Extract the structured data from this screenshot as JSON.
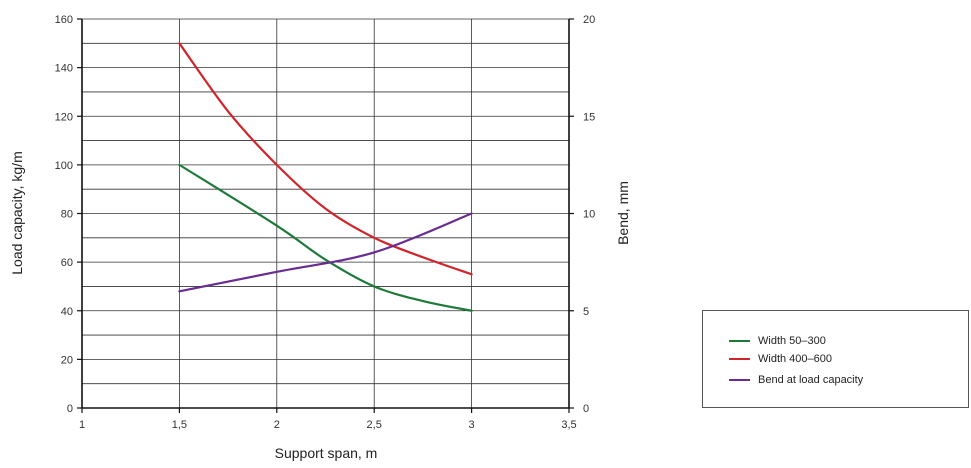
{
  "chart_data": {
    "type": "line",
    "xlabel": "Support span, m",
    "ylabel": "Load capacity, kg/m",
    "y2label": "Bend, mm",
    "x_ticks": [
      "1",
      "1,5",
      "2",
      "2,5",
      "3",
      "3,5"
    ],
    "y_ticks": [
      "0",
      "20",
      "40",
      "60",
      "80",
      "100",
      "120",
      "140",
      "160"
    ],
    "y2_ticks": [
      "0",
      "5",
      "10",
      "15",
      "20"
    ],
    "xlim": [
      1,
      3.5
    ],
    "ylim": [
      0,
      160
    ],
    "y2lim": [
      0,
      20
    ],
    "grid": true,
    "legend_position": "bottom-right",
    "series": [
      {
        "name": "Width 50–300",
        "axis": "left",
        "color": "#1f7a3a",
        "x": [
          1.5,
          2,
          2.25,
          2.5,
          2.75,
          3
        ],
        "y": [
          100,
          75,
          61,
          50,
          44,
          40
        ]
      },
      {
        "name": "Width 400–600",
        "axis": "left",
        "color": "#d0242b",
        "x": [
          1.5,
          1.75,
          2,
          2.25,
          2.5,
          2.75,
          3
        ],
        "y": [
          150,
          122,
          100,
          82,
          70,
          62,
          55
        ]
      },
      {
        "name": "Bend at load capacity",
        "axis": "right",
        "color": "#6a2c91",
        "x": [
          1.5,
          2,
          2.5,
          3
        ],
        "y": [
          6,
          7,
          8,
          10
        ]
      }
    ]
  }
}
